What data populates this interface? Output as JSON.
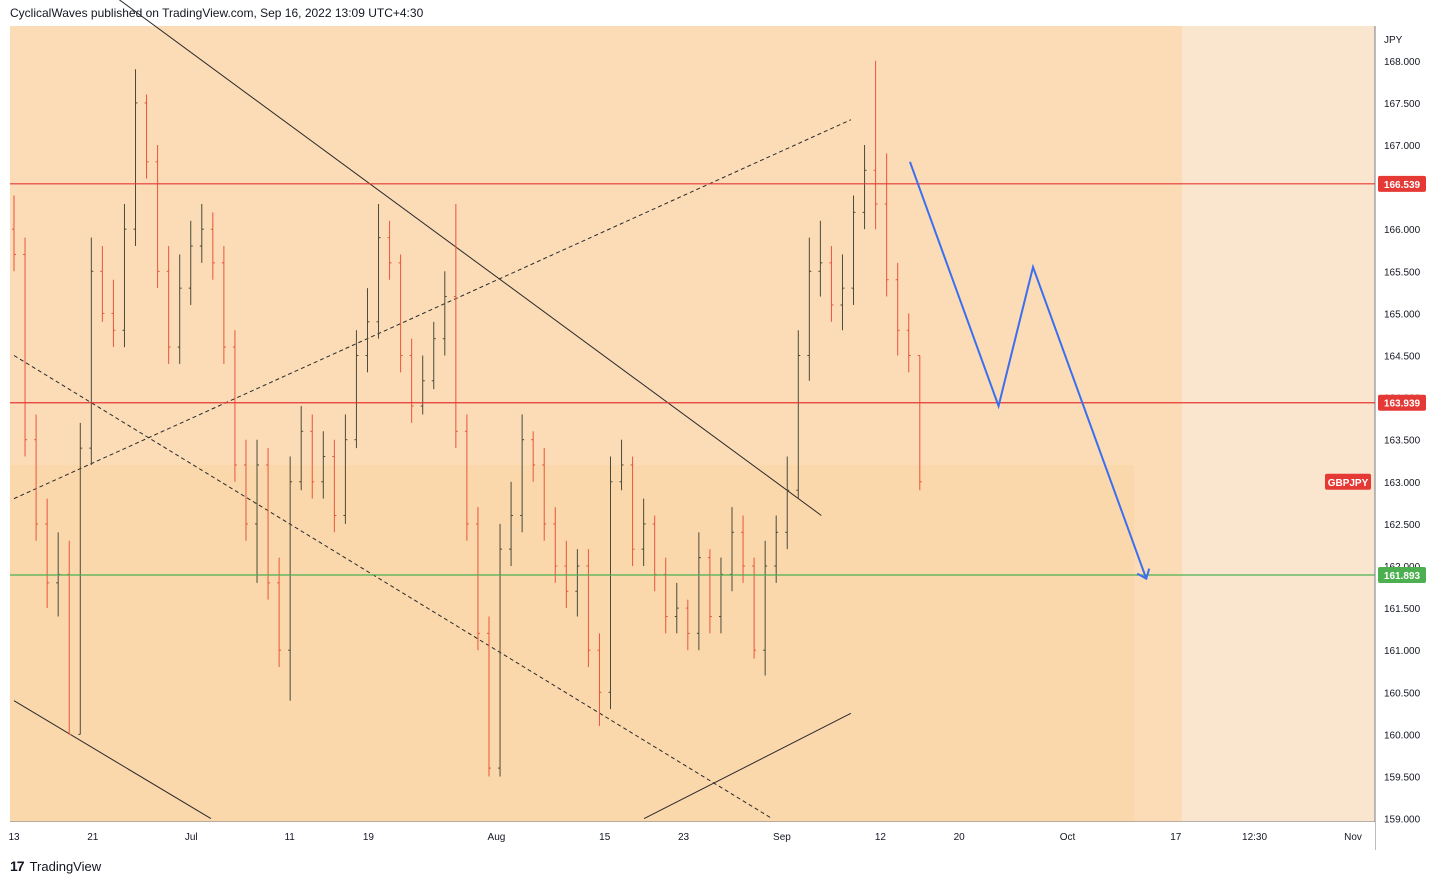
{
  "header": {
    "publisher_line": "CyclicalWaves published on TradingView.com, Sep 16, 2022 13:09 UTC+4:30"
  },
  "footer": {
    "brand": "TradingView",
    "logo_mark": "17"
  },
  "colors": {
    "background_plot": "#fbe0c0",
    "future_zone": "#fae6cf",
    "inner_zone": "#fbd9ad",
    "candle_up": "#4a4a3a",
    "candle_down": "#e8553c",
    "red_line": "#e53935",
    "green_line": "#4caf50",
    "projection": "#3b6ff0"
  },
  "chart_data": {
    "type": "candlestick",
    "symbol": "GBPJPY",
    "currency": "JPY",
    "ylim": [
      159.0,
      168.3
    ],
    "y_ticks": [
      "168.000",
      "167.500",
      "167.000",
      "166.500",
      "166.000",
      "165.500",
      "165.000",
      "164.500",
      "164.000",
      "163.500",
      "163.000",
      "162.500",
      "162.000",
      "161.500",
      "161.000",
      "160.500",
      "160.000",
      "159.500",
      "159.000"
    ],
    "x_ticks": [
      "13",
      "21",
      "Jul",
      "11",
      "19",
      "Aug",
      "15",
      "23",
      "Sep",
      "12",
      "20",
      "Oct",
      "17",
      "12:30",
      "Nov"
    ],
    "x_tick_days": [
      0,
      8,
      18,
      28,
      36,
      49,
      60,
      68,
      78,
      88,
      96,
      107,
      118,
      126,
      136
    ],
    "x_range_days": [
      0,
      136
    ],
    "last_candle_day": 92,
    "horizontal_levels": [
      {
        "label": "166.539",
        "value": 166.539,
        "color": "red"
      },
      {
        "label": "163.939",
        "value": 163.939,
        "color": "red"
      },
      {
        "label": "161.893",
        "value": 161.893,
        "color": "green"
      }
    ],
    "symbol_tag": "GBPJPY",
    "closes": [
      165.7,
      163.5,
      162.5,
      161.8,
      161.9,
      160.0,
      163.4,
      165.5,
      165.0,
      164.8,
      166.0,
      167.5,
      166.8,
      165.5,
      164.6,
      165.3,
      165.8,
      166.0,
      165.6,
      164.6,
      163.2,
      162.5,
      163.2,
      161.8,
      161.0,
      163.0,
      163.6,
      163.0,
      163.3,
      162.6,
      163.5,
      164.5,
      164.9,
      165.9,
      165.6,
      164.5,
      163.9,
      164.2,
      164.7,
      165.2,
      163.6,
      162.5,
      161.2,
      159.6,
      162.2,
      162.6,
      163.5,
      163.2,
      162.5,
      162.0,
      161.7,
      162.0,
      161.0,
      160.5,
      163.0,
      163.2,
      162.2,
      162.5,
      161.9,
      161.4,
      161.5,
      161.2,
      162.1,
      161.4,
      161.9,
      162.4,
      162.0,
      161.0,
      162.0,
      162.4,
      162.9,
      164.5,
      165.5,
      165.6,
      165.1,
      165.3,
      166.2,
      166.7,
      166.3,
      165.4,
      164.8,
      164.5,
      163.0
    ],
    "opens": [
      166.0,
      165.7,
      163.5,
      162.5,
      161.8,
      161.9,
      160.0,
      163.4,
      165.5,
      165.0,
      164.8,
      166.0,
      167.5,
      166.8,
      165.5,
      164.6,
      165.3,
      165.8,
      166.0,
      165.6,
      164.6,
      163.2,
      162.5,
      163.2,
      161.8,
      161.0,
      163.0,
      163.6,
      163.0,
      163.3,
      162.6,
      163.5,
      164.5,
      164.9,
      165.9,
      165.6,
      164.5,
      163.9,
      164.2,
      164.7,
      165.2,
      163.6,
      162.5,
      161.2,
      159.6,
      162.2,
      162.6,
      163.5,
      163.2,
      162.5,
      162.0,
      161.7,
      162.0,
      161.0,
      160.5,
      163.0,
      163.2,
      162.2,
      162.5,
      161.9,
      161.4,
      161.5,
      161.2,
      162.1,
      161.4,
      161.9,
      162.4,
      162.0,
      161.0,
      162.0,
      162.4,
      162.9,
      164.5,
      165.5,
      165.6,
      165.1,
      165.3,
      166.2,
      166.7,
      166.3,
      165.4,
      164.8,
      164.5
    ],
    "highs": [
      166.4,
      165.9,
      163.8,
      162.8,
      162.4,
      162.3,
      163.7,
      165.9,
      165.8,
      165.4,
      166.3,
      167.9,
      167.6,
      167.0,
      165.8,
      165.7,
      166.1,
      166.3,
      166.2,
      165.8,
      164.8,
      163.5,
      163.5,
      163.4,
      162.1,
      163.3,
      163.9,
      163.8,
      163.6,
      163.5,
      163.8,
      164.8,
      165.3,
      166.3,
      166.1,
      165.7,
      164.7,
      164.5,
      164.9,
      165.5,
      166.3,
      163.8,
      162.7,
      161.4,
      162.5,
      163.0,
      163.8,
      163.6,
      163.4,
      162.7,
      162.3,
      162.2,
      162.2,
      161.2,
      163.3,
      163.5,
      163.3,
      162.8,
      162.6,
      162.1,
      161.8,
      161.6,
      162.4,
      162.2,
      162.1,
      162.7,
      162.6,
      162.1,
      162.3,
      162.6,
      163.3,
      164.8,
      165.9,
      166.1,
      165.8,
      165.7,
      166.4,
      167.0,
      168.0,
      166.9,
      165.6,
      165.0,
      164.5
    ],
    "lows": [
      165.5,
      163.3,
      162.3,
      161.5,
      161.4,
      160.0,
      160.0,
      163.2,
      164.9,
      164.6,
      164.6,
      165.8,
      166.6,
      165.3,
      164.4,
      164.4,
      165.1,
      165.6,
      165.4,
      164.4,
      163.0,
      162.3,
      161.8,
      161.6,
      160.8,
      160.4,
      162.9,
      162.8,
      162.8,
      162.4,
      162.5,
      163.4,
      164.3,
      164.7,
      165.4,
      164.3,
      163.7,
      163.8,
      164.1,
      164.5,
      163.4,
      162.3,
      161.0,
      159.5,
      159.5,
      162.0,
      162.4,
      163.0,
      162.3,
      161.8,
      161.5,
      161.4,
      160.8,
      160.1,
      160.3,
      162.9,
      162.0,
      162.0,
      161.7,
      161.2,
      161.2,
      161.0,
      161.0,
      161.2,
      161.2,
      161.7,
      161.8,
      160.9,
      160.7,
      161.8,
      162.2,
      162.8,
      164.2,
      165.2,
      164.9,
      164.8,
      165.1,
      166.0,
      166.0,
      165.2,
      164.5,
      164.3,
      162.9
    ],
    "trendlines": [
      {
        "name": "upper-channel",
        "style": "solid",
        "points": [
          [
            4,
            169.3
          ],
          [
            82,
            162.6
          ]
        ]
      },
      {
        "name": "lower-channel",
        "style": "solid",
        "points": [
          [
            0,
            160.4
          ],
          [
            20,
            159.0
          ]
        ]
      },
      {
        "name": "mid-dashed-falling",
        "style": "dashed",
        "points": [
          [
            0,
            164.5
          ],
          [
            77,
            159.0
          ]
        ]
      },
      {
        "name": "rising-dashed",
        "style": "dashed",
        "points": [
          [
            0,
            162.8
          ],
          [
            85,
            167.3
          ]
        ]
      },
      {
        "name": "rising-solid",
        "style": "solid",
        "points": [
          [
            64,
            159.0
          ],
          [
            85,
            160.25
          ]
        ]
      }
    ],
    "projection_path": [
      [
        91,
        166.8
      ],
      [
        100,
        163.9
      ],
      [
        103.5,
        165.55
      ],
      [
        115,
        161.85
      ]
    ]
  }
}
